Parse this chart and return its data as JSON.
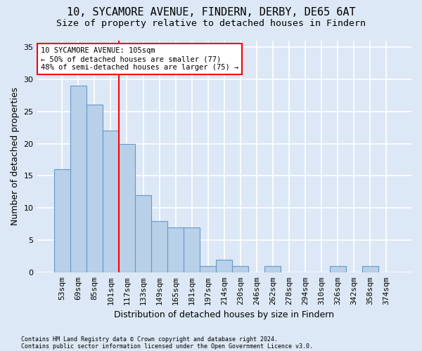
{
  "title1": "10, SYCAMORE AVENUE, FINDERN, DERBY, DE65 6AT",
  "title2": "Size of property relative to detached houses in Findern",
  "xlabel": "Distribution of detached houses by size in Findern",
  "ylabel": "Number of detached properties",
  "footer1": "Contains HM Land Registry data © Crown copyright and database right 2024.",
  "footer2": "Contains public sector information licensed under the Open Government Licence v3.0.",
  "categories": [
    "53sqm",
    "69sqm",
    "85sqm",
    "101sqm",
    "117sqm",
    "133sqm",
    "149sqm",
    "165sqm",
    "181sqm",
    "197sqm",
    "214sqm",
    "230sqm",
    "246sqm",
    "262sqm",
    "278sqm",
    "294sqm",
    "310sqm",
    "326sqm",
    "342sqm",
    "358sqm",
    "374sqm"
  ],
  "values": [
    16,
    29,
    26,
    22,
    20,
    12,
    8,
    7,
    7,
    1,
    2,
    1,
    0,
    1,
    0,
    0,
    0,
    1,
    0,
    1,
    0
  ],
  "bar_color": "#b8d0e8",
  "bar_edge_color": "#6699cc",
  "vline_position": 3.5,
  "vline_color": "red",
  "annotation_text": "10 SYCAMORE AVENUE: 105sqm\n← 50% of detached houses are smaller (77)\n48% of semi-detached houses are larger (75) →",
  "annotation_box_facecolor": "white",
  "annotation_box_edgecolor": "red",
  "ylim": [
    0,
    36
  ],
  "yticks": [
    0,
    5,
    10,
    15,
    20,
    25,
    30,
    35
  ],
  "background_color": "#dce8f5",
  "grid_color": "white",
  "title1_fontsize": 11,
  "title2_fontsize": 9.5,
  "xlabel_fontsize": 9,
  "ylabel_fontsize": 9,
  "tick_fontsize": 8,
  "annotation_fontsize": 7.5,
  "footer_fontsize": 6
}
